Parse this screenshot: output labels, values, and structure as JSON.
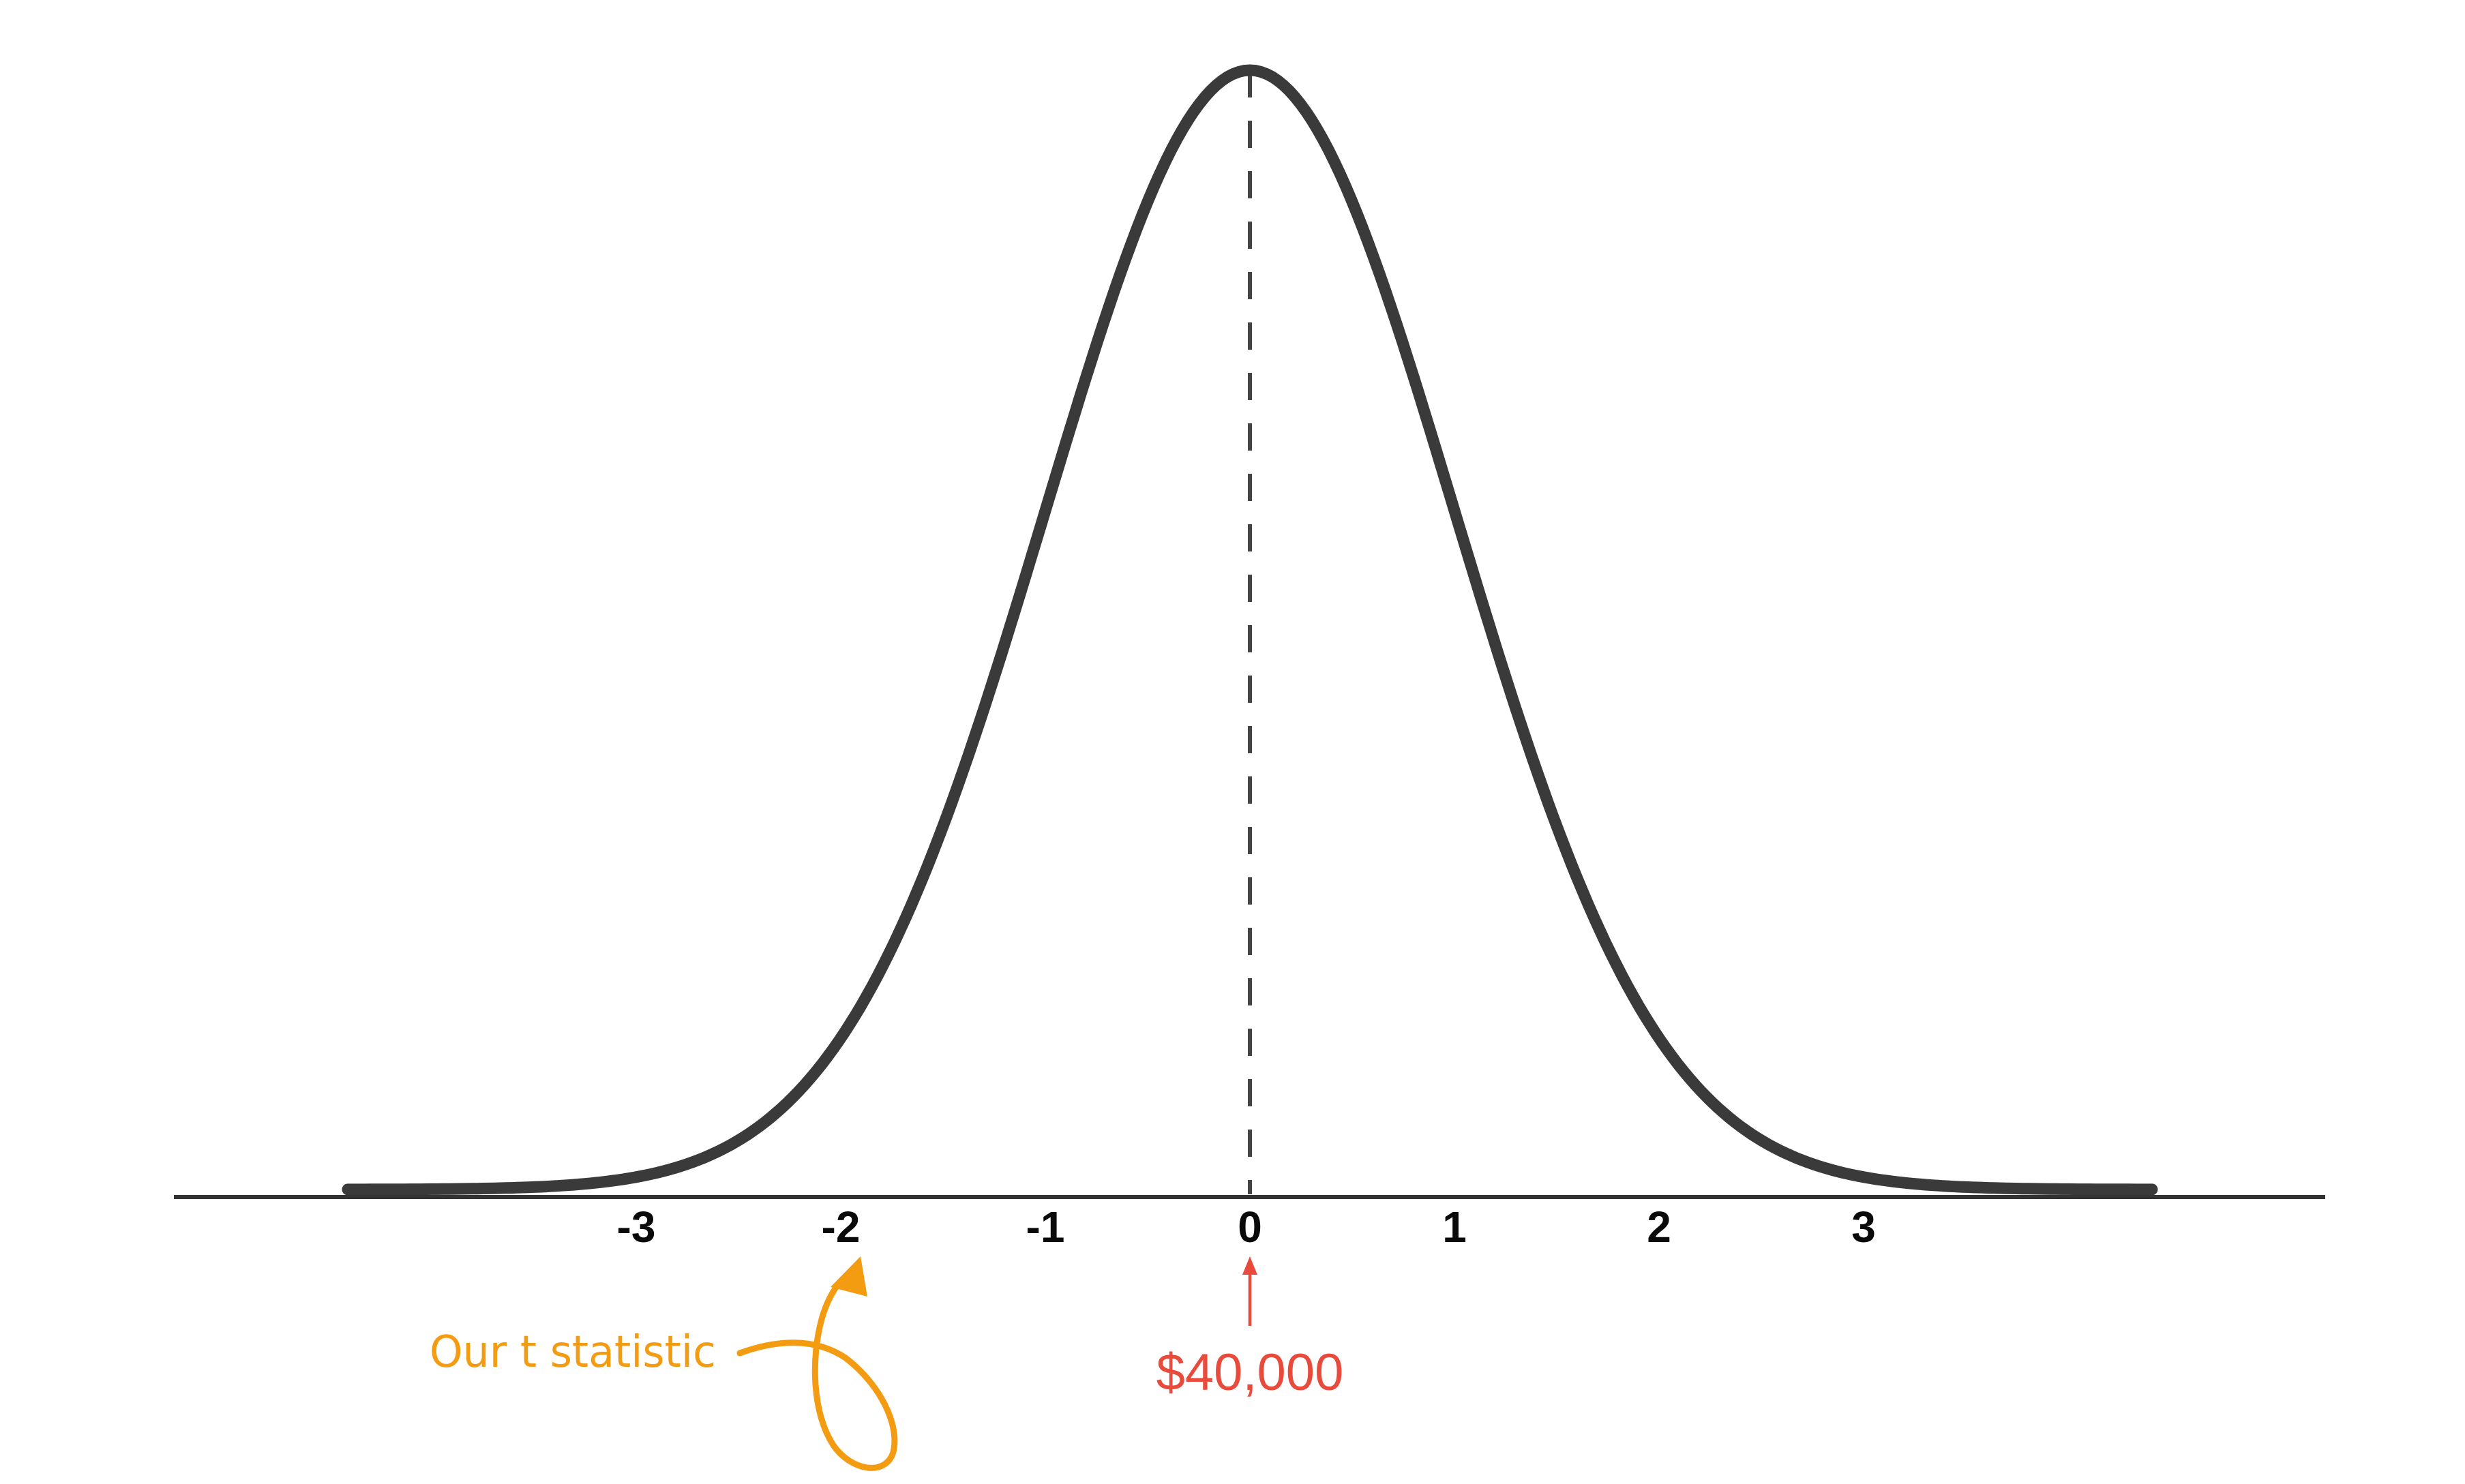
{
  "chart_data": {
    "type": "line",
    "description_kind": "normal-distribution-curve",
    "x": [
      -3,
      -2,
      -1,
      0,
      1,
      2,
      3
    ],
    "tick_labels": [
      "-3",
      "-2",
      "-1",
      "0",
      "1",
      "2",
      "3"
    ],
    "xlim": [
      -4.41,
      4.41
    ],
    "center": 0,
    "grid": false,
    "annotations": {
      "mean_value": "$40,000",
      "statistic_label": "Our t statistic",
      "statistic_points_to": -2
    }
  },
  "colors": {
    "curve": "#3a3a3a",
    "axis": "#333333",
    "center_line": "#444444",
    "mean_annotation": "#e84a3c",
    "statistic_annotation": "#f39c12"
  }
}
